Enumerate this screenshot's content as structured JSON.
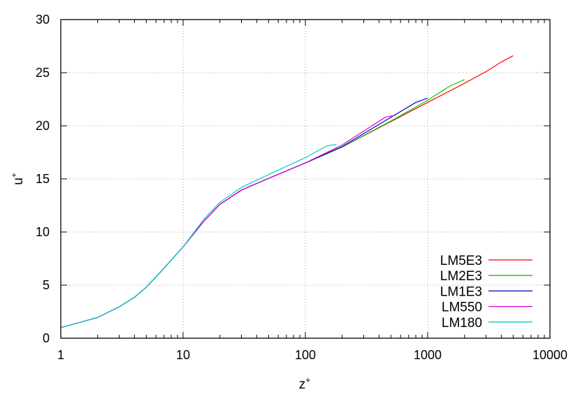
{
  "chart_data": {
    "type": "line",
    "title": "",
    "xlabel": "z",
    "xlabel_sup": "+",
    "ylabel": "u",
    "ylabel_sup": "+",
    "xscale": "log",
    "xlim": [
      1,
      10000
    ],
    "ylim": [
      0,
      30
    ],
    "grid": true,
    "legend_position": "bottom-right",
    "x_ticks": [
      1,
      10,
      100,
      1000,
      10000
    ],
    "x_tick_labels": [
      "1",
      "10",
      "100",
      "1000",
      "10000"
    ],
    "y_ticks": [
      0,
      5,
      10,
      15,
      20,
      25,
      30
    ],
    "y_tick_labels": [
      "0",
      "5",
      "10",
      "15",
      "20",
      "25",
      "30"
    ],
    "series": [
      {
        "name": "LM5E3",
        "color": "#ff0000",
        "points": [
          [
            1,
            1.0
          ],
          [
            2,
            1.95
          ],
          [
            3,
            2.95
          ],
          [
            4,
            3.85
          ],
          [
            5,
            4.8
          ],
          [
            7,
            6.6
          ],
          [
            10,
            8.6
          ],
          [
            15,
            11.1
          ],
          [
            20,
            12.6
          ],
          [
            30,
            13.95
          ],
          [
            50,
            15.05
          ],
          [
            100,
            16.5
          ],
          [
            200,
            18.0
          ],
          [
            500,
            20.4
          ],
          [
            1000,
            22.2
          ],
          [
            2000,
            24.0
          ],
          [
            3000,
            25.1
          ],
          [
            4000,
            26.0
          ],
          [
            5000,
            26.6
          ]
        ]
      },
      {
        "name": "LM2E3",
        "color": "#00cc00",
        "points": [
          [
            1,
            1.0
          ],
          [
            2,
            1.95
          ],
          [
            3,
            2.95
          ],
          [
            4,
            3.85
          ],
          [
            5,
            4.8
          ],
          [
            7,
            6.6
          ],
          [
            10,
            8.6
          ],
          [
            15,
            11.1
          ],
          [
            20,
            12.6
          ],
          [
            30,
            13.95
          ],
          [
            50,
            15.05
          ],
          [
            100,
            16.5
          ],
          [
            200,
            18.0
          ],
          [
            500,
            20.45
          ],
          [
            1000,
            22.4
          ],
          [
            1500,
            23.7
          ],
          [
            2000,
            24.35
          ]
        ]
      },
      {
        "name": "LM1E3",
        "color": "#0000cc",
        "points": [
          [
            1,
            1.0
          ],
          [
            2,
            1.95
          ],
          [
            3,
            2.95
          ],
          [
            4,
            3.85
          ],
          [
            5,
            4.8
          ],
          [
            7,
            6.6
          ],
          [
            10,
            8.6
          ],
          [
            15,
            11.1
          ],
          [
            20,
            12.6
          ],
          [
            30,
            13.95
          ],
          [
            50,
            15.05
          ],
          [
            100,
            16.5
          ],
          [
            200,
            18.05
          ],
          [
            500,
            20.8
          ],
          [
            800,
            22.2
          ],
          [
            1000,
            22.6
          ]
        ]
      },
      {
        "name": "LM550",
        "color": "#dd00dd",
        "points": [
          [
            1,
            1.0
          ],
          [
            2,
            1.95
          ],
          [
            3,
            2.95
          ],
          [
            4,
            3.85
          ],
          [
            5,
            4.8
          ],
          [
            7,
            6.6
          ],
          [
            10,
            8.6
          ],
          [
            15,
            11.1
          ],
          [
            20,
            12.6
          ],
          [
            30,
            13.95
          ],
          [
            50,
            15.05
          ],
          [
            100,
            16.5
          ],
          [
            200,
            18.2
          ],
          [
            300,
            19.5
          ],
          [
            450,
            20.8
          ],
          [
            550,
            21.0
          ]
        ]
      },
      {
        "name": "LM180",
        "color": "#00cccc",
        "points": [
          [
            1,
            1.0
          ],
          [
            2,
            1.95
          ],
          [
            3,
            2.95
          ],
          [
            4,
            3.85
          ],
          [
            5,
            4.8
          ],
          [
            7,
            6.6
          ],
          [
            10,
            8.6
          ],
          [
            15,
            11.3
          ],
          [
            20,
            12.8
          ],
          [
            30,
            14.2
          ],
          [
            50,
            15.4
          ],
          [
            100,
            17.0
          ],
          [
            150,
            18.1
          ],
          [
            180,
            18.25
          ]
        ]
      }
    ]
  }
}
